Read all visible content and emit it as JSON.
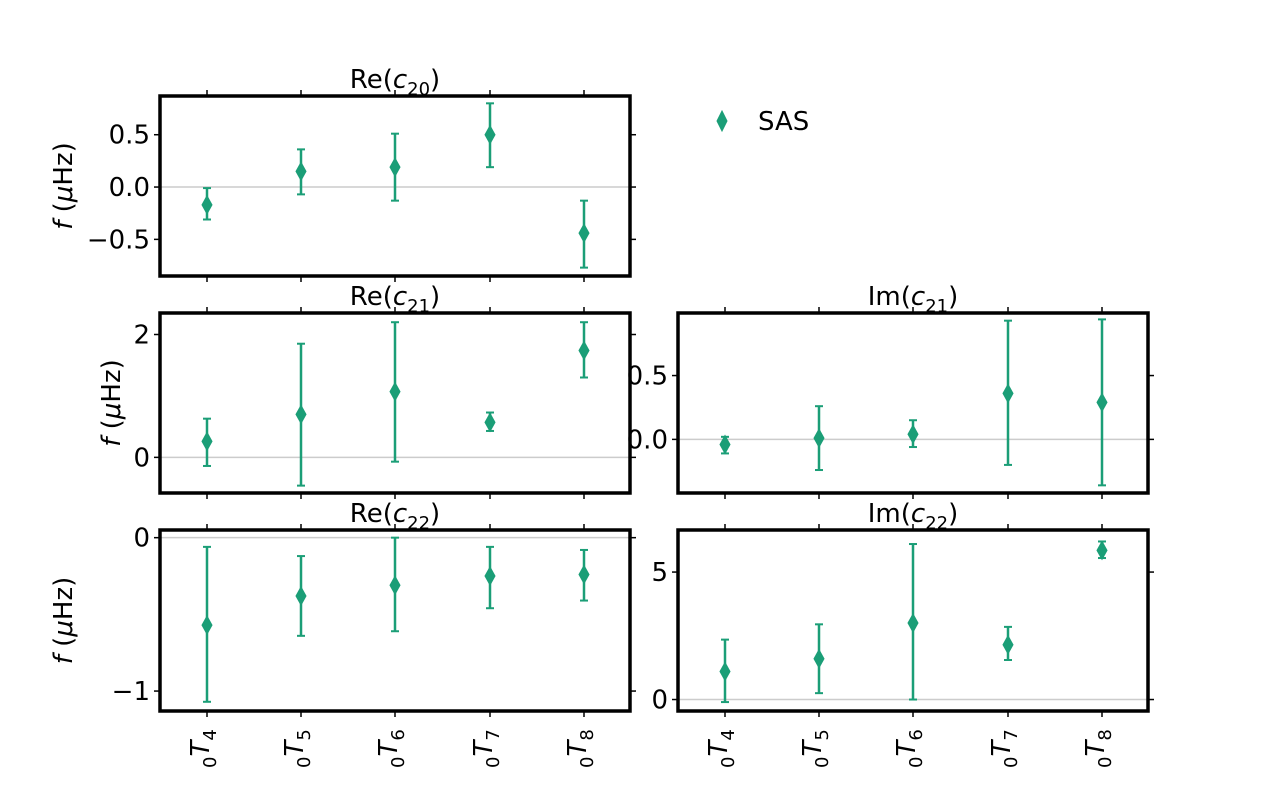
{
  "chart_data": {
    "type": "scatter",
    "layout": "3x2 grid of error-bar panels; top-right cell holds legend",
    "categories": [
      "0T4",
      "0T5",
      "0T6",
      "0T7",
      "0T8"
    ],
    "category_labels": [
      {
        "pre": "0",
        "main": "T",
        "sub": "4"
      },
      {
        "pre": "0",
        "main": "T",
        "sub": "5"
      },
      {
        "pre": "0",
        "main": "T",
        "sub": "6"
      },
      {
        "pre": "0",
        "main": "T",
        "sub": "7"
      },
      {
        "pre": "0",
        "main": "T",
        "sub": "8"
      }
    ],
    "legend": {
      "label": "SAS",
      "marker": "diamond",
      "position": "top-right"
    },
    "series_color": "#1b9e77",
    "zero_line_color": "#cccccc",
    "ylabel": {
      "italic": "f",
      "rest": " (",
      "mu": "μ",
      "unit": "Hz)"
    },
    "panels": [
      {
        "id": "re-c20",
        "row": 0,
        "col": 0,
        "title": {
          "pre": "Re(",
          "var": "c",
          "sub": "20",
          "post": ")"
        },
        "ylim": [
          -0.85,
          0.87
        ],
        "yticks": [
          {
            "v": 0.5,
            "label": "0.5"
          },
          {
            "v": 0.0,
            "label": "0.0"
          },
          {
            "v": -0.5,
            "label": "−0.5"
          }
        ],
        "ylabel": true,
        "xticklabels": false,
        "values": [
          -0.17,
          0.15,
          0.19,
          0.5,
          -0.44
        ],
        "err_low": [
          -0.31,
          -0.07,
          -0.13,
          0.19,
          -0.77
        ],
        "err_high": [
          -0.01,
          0.36,
          0.51,
          0.8,
          -0.13
        ]
      },
      {
        "id": "re-c21",
        "row": 1,
        "col": 0,
        "title": {
          "pre": "Re(",
          "var": "c",
          "sub": "21",
          "post": ")"
        },
        "ylim": [
          -0.58,
          2.35
        ],
        "yticks": [
          {
            "v": 2,
            "label": "2"
          },
          {
            "v": 0,
            "label": "0"
          }
        ],
        "ylabel": true,
        "xticklabels": false,
        "values": [
          0.26,
          0.7,
          1.07,
          0.57,
          1.74
        ],
        "err_low": [
          -0.14,
          -0.46,
          -0.07,
          0.43,
          1.3
        ],
        "err_high": [
          0.63,
          1.85,
          2.2,
          0.73,
          2.2
        ]
      },
      {
        "id": "im-c21",
        "row": 1,
        "col": 1,
        "title": {
          "pre": "Im(",
          "var": "c",
          "sub": "21",
          "post": ")"
        },
        "ylim": [
          -0.42,
          0.99
        ],
        "yticks": [
          {
            "v": 0.5,
            "label": "0.5"
          },
          {
            "v": 0.0,
            "label": "0.0"
          }
        ],
        "ylabel": false,
        "xticklabels": false,
        "values": [
          -0.04,
          0.01,
          0.04,
          0.36,
          0.29
        ],
        "err_low": [
          -0.11,
          -0.24,
          -0.06,
          -0.2,
          -0.36
        ],
        "err_high": [
          0.02,
          0.26,
          0.15,
          0.93,
          0.94
        ]
      },
      {
        "id": "re-c22",
        "row": 2,
        "col": 0,
        "title": {
          "pre": "Re(",
          "var": "c",
          "sub": "22",
          "post": ")"
        },
        "ylim": [
          -1.13,
          0.05
        ],
        "yticks": [
          {
            "v": 0,
            "label": "0"
          },
          {
            "v": -1,
            "label": "−1"
          }
        ],
        "ylabel": true,
        "xticklabels": true,
        "values": [
          -0.57,
          -0.38,
          -0.31,
          -0.25,
          -0.24
        ],
        "err_low": [
          -1.07,
          -0.64,
          -0.61,
          -0.46,
          -0.41
        ],
        "err_high": [
          -0.06,
          -0.12,
          0.0,
          -0.06,
          -0.08
        ]
      },
      {
        "id": "im-c22",
        "row": 2,
        "col": 1,
        "title": {
          "pre": "Im(",
          "var": "c",
          "sub": "22",
          "post": ")"
        },
        "ylim": [
          -0.45,
          6.65
        ],
        "yticks": [
          {
            "v": 5,
            "label": "5"
          },
          {
            "v": 0,
            "label": "0"
          }
        ],
        "ylabel": false,
        "xticklabels": true,
        "values": [
          1.1,
          1.6,
          3.0,
          2.15,
          5.85
        ],
        "err_low": [
          -0.1,
          0.25,
          0.0,
          1.55,
          5.55
        ],
        "err_high": [
          2.35,
          2.95,
          6.1,
          2.85,
          6.2
        ]
      }
    ]
  }
}
